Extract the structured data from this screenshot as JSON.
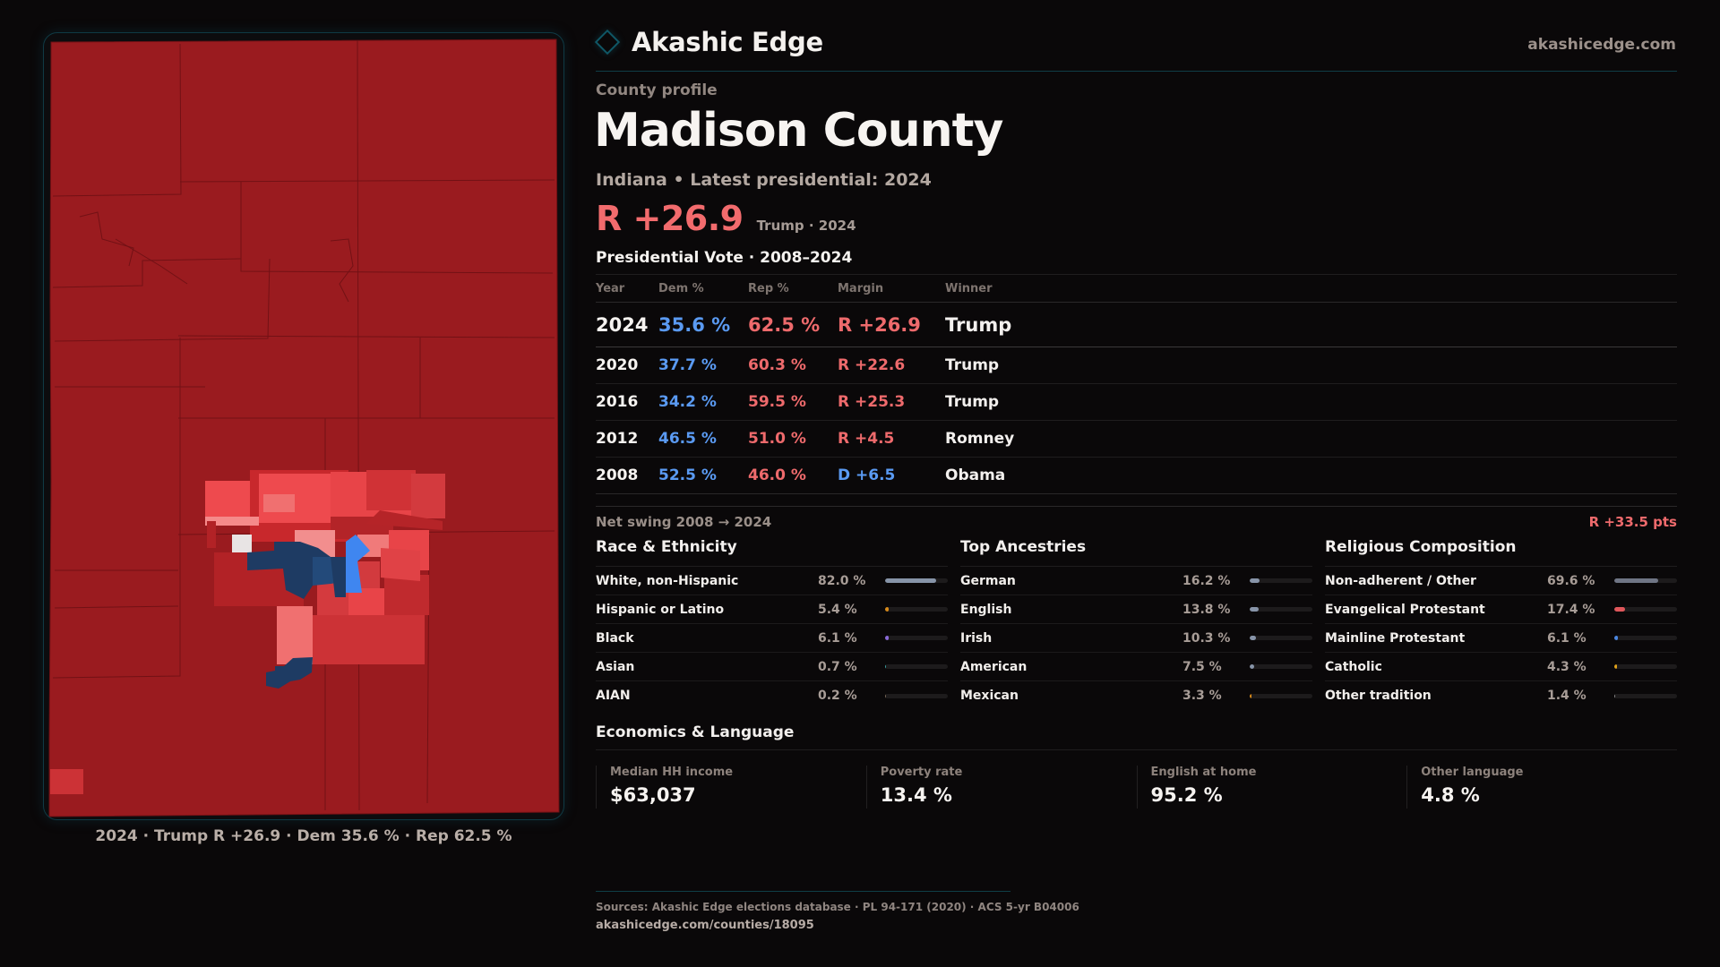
{
  "brand": {
    "name": "Akashic Edge",
    "icon": "diamond-icon",
    "url": "akashicedge.com"
  },
  "profile": {
    "kicker": "County profile",
    "title": "Madison County",
    "subtitle": "Indiana • Latest presidential: 2024",
    "headline_margin": "R +26.9",
    "headline_note": "Trump · 2024"
  },
  "colors": {
    "accent": "#0f5766",
    "rep": "#ee6a6c",
    "dem": "#5a9af2",
    "map_solid_rep": "#9a1b1f",
    "background": "#0a0809"
  },
  "vote": {
    "section_title": "Presidential Vote · 2008–2024",
    "headers": {
      "year": "Year",
      "dem": "Dem %",
      "rep": "Rep %",
      "margin": "Margin",
      "winner": "Winner"
    },
    "rows": [
      {
        "year": "2024",
        "dem": "35.6 %",
        "rep": "62.5 %",
        "margin": "R +26.9",
        "party": "R",
        "winner": "Trump"
      },
      {
        "year": "2020",
        "dem": "37.7 %",
        "rep": "60.3 %",
        "margin": "R +22.6",
        "party": "R",
        "winner": "Trump"
      },
      {
        "year": "2016",
        "dem": "34.2 %",
        "rep": "59.5 %",
        "margin": "R +25.3",
        "party": "R",
        "winner": "Trump"
      },
      {
        "year": "2012",
        "dem": "46.5 %",
        "rep": "51.0 %",
        "margin": "R +4.5",
        "party": "R",
        "winner": "Romney"
      },
      {
        "year": "2008",
        "dem": "52.5 %",
        "rep": "46.0 %",
        "margin": "D +6.5",
        "party": "D",
        "winner": "Obama"
      }
    ],
    "swing_label": "Net swing 2008 → 2024",
    "swing_value": "R +33.5 pts"
  },
  "race": {
    "title": "Race & Ethnicity",
    "items": [
      {
        "label": "White, non-Hispanic",
        "value": "82.0 %",
        "pct": 82.0,
        "color": "#8794a8"
      },
      {
        "label": "Hispanic or Latino",
        "value": "5.4 %",
        "pct": 5.4,
        "color": "#d88a1a"
      },
      {
        "label": "Black",
        "value": "6.1 %",
        "pct": 6.1,
        "color": "#8a6ad8"
      },
      {
        "label": "Asian",
        "value": "0.7 %",
        "pct": 0.7,
        "color": "#3aa0a0"
      },
      {
        "label": "AIAN",
        "value": "0.2 %",
        "pct": 0.2,
        "color": "#7a6a5a"
      }
    ]
  },
  "ancestry": {
    "title": "Top Ancestries",
    "items": [
      {
        "label": "German",
        "value": "16.2 %",
        "pct": 16.2,
        "color": "#8794a8"
      },
      {
        "label": "English",
        "value": "13.8 %",
        "pct": 13.8,
        "color": "#8794a8"
      },
      {
        "label": "Irish",
        "value": "10.3 %",
        "pct": 10.3,
        "color": "#8794a8"
      },
      {
        "label": "American",
        "value": "7.5 %",
        "pct": 7.5,
        "color": "#8794a8"
      },
      {
        "label": "Mexican",
        "value": "3.3 %",
        "pct": 3.3,
        "color": "#d88a1a"
      }
    ]
  },
  "religion": {
    "title": "Religious Composition",
    "items": [
      {
        "label": "Non-adherent / Other",
        "value": "69.6 %",
        "pct": 69.6,
        "color": "#6f7585"
      },
      {
        "label": "Evangelical Protestant",
        "value": "17.4 %",
        "pct": 17.4,
        "color": "#e0575b"
      },
      {
        "label": "Mainline Protestant",
        "value": "6.1 %",
        "pct": 6.1,
        "color": "#4a86e0"
      },
      {
        "label": "Catholic",
        "value": "4.3 %",
        "pct": 4.3,
        "color": "#e0a21a"
      },
      {
        "label": "Other tradition",
        "value": "1.4 %",
        "pct": 1.4,
        "color": "#8a8a8a"
      }
    ]
  },
  "economics": {
    "title": "Economics & Language",
    "items": [
      {
        "label": "Median HH income",
        "value": "$63,037"
      },
      {
        "label": "Poverty rate",
        "value": "13.4 %"
      },
      {
        "label": "English at home",
        "value": "95.2 %"
      },
      {
        "label": "Other language",
        "value": "4.8 %"
      }
    ]
  },
  "map": {
    "caption": "2024 · Trump R +26.9 · Dem 35.6 % · Rep 62.5 %"
  },
  "footer": {
    "sources": "Sources: Akashic Edge elections database · PL 94-171 (2020) · ACS 5-yr B04006",
    "permalink": "akashicedge.com/counties/18095"
  }
}
